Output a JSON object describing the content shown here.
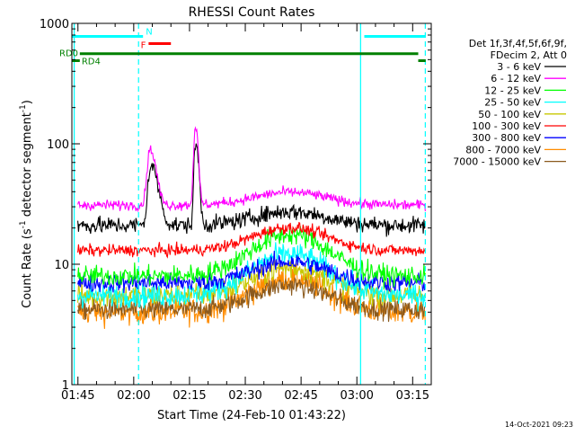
{
  "chart_data": {
    "type": "line",
    "title": "RHESSI Count Rates",
    "xlabel": "Start Time (24-Feb-10 01:43:22)",
    "ylabel": "Count Rate (s⁻¹ detector segment⁻¹)",
    "ylabel_main": "Count Rate (s",
    "ylabel_mid": " detector segment",
    "ylabel_end": ")",
    "ylabel_sup": "-1",
    "yscale": "log",
    "xlim_minutes": [
      103.37,
      200.0
    ],
    "ylim": [
      1,
      1000
    ],
    "x_ticks": [
      {
        "label": "01:45",
        "minute": 105
      },
      {
        "label": "02:00",
        "minute": 120
      },
      {
        "label": "02:15",
        "minute": 135
      },
      {
        "label": "02:30",
        "minute": 150
      },
      {
        "label": "02:45",
        "minute": 165
      },
      {
        "label": "03:00",
        "minute": 180
      },
      {
        "label": "03:15",
        "minute": 195
      }
    ],
    "y_ticks": [
      {
        "label": "1",
        "value": 1
      },
      {
        "label": "10",
        "value": 10
      },
      {
        "label": "100",
        "value": 100
      },
      {
        "label": "1000",
        "value": 1000
      }
    ],
    "legend_header": [
      "Det 1f,3f,4f,5f,6f,9f,",
      "FDecim 2, Att 0"
    ],
    "legend_placement": "right",
    "series": [
      {
        "name": "3 - 6 keV",
        "color": "#000000",
        "base": 21,
        "bump": 1.3,
        "noise": 0.1,
        "peaks": [
          {
            "minute": 124.6,
            "value": 65,
            "rise": 1.0,
            "decay": 2.5
          },
          {
            "minute": 136.7,
            "value": 100,
            "rise": 0.6,
            "decay": 1.0
          }
        ]
      },
      {
        "name": "6 - 12 keV",
        "color": "#ff00ff",
        "base": 31,
        "bump": 1.28,
        "noise": 0.06,
        "peaks": [
          {
            "minute": 124.4,
            "value": 90,
            "rise": 1.0,
            "decay": 2.0
          },
          {
            "minute": 136.6,
            "value": 140,
            "rise": 0.6,
            "decay": 0.9
          }
        ]
      },
      {
        "name": "12 - 25 keV",
        "color": "#00ff00",
        "base": 8.0,
        "bump": 2.2,
        "noise": 0.12,
        "peaks": []
      },
      {
        "name": "25 - 50 keV",
        "color": "#00ffff",
        "base": 5.5,
        "bump": 2.2,
        "noise": 0.14,
        "peaks": []
      },
      {
        "name": "50 - 100 keV",
        "color": "#c8c800",
        "base": 5.5,
        "bump": 1.7,
        "noise": 0.14,
        "peaks": []
      },
      {
        "name": "100 - 300 keV",
        "color": "#ff0000",
        "base": 13,
        "bump": 1.55,
        "noise": 0.07,
        "peaks": []
      },
      {
        "name": "300 - 800 keV",
        "color": "#0000ff",
        "base": 7.0,
        "bump": 1.5,
        "noise": 0.11,
        "peaks": []
      },
      {
        "name": "800 - 7000 keV",
        "color": "#ff8c00",
        "base": 4.0,
        "bump": 1.9,
        "noise": 0.15,
        "peaks": []
      },
      {
        "name": "7000 - 15000 keV",
        "color": "#8b5a1e",
        "base": 4.2,
        "bump": 1.6,
        "noise": 0.12,
        "peaks": []
      }
    ],
    "flags": [
      {
        "label": "N",
        "color": "#00ffff",
        "segments": [
          [
            103.37,
            122.5
          ],
          [
            182.0,
            198.5
          ]
        ],
        "value": 780
      },
      {
        "label": "F",
        "color": "#ff0000",
        "segments": [
          [
            124.0,
            130.0
          ]
        ],
        "value": 680
      },
      {
        "label": "RD0",
        "color": "#008000",
        "segments": [
          [
            105.5,
            196.5
          ]
        ],
        "value": 560
      },
      {
        "label": "RD4",
        "color": "#008000",
        "segments": [
          [
            103.37,
            105.5
          ],
          [
            196.5,
            198.5
          ]
        ],
        "value": 490
      }
    ],
    "vlines": [
      {
        "minute": 104.0,
        "color": "#00ffff",
        "style": "solid"
      },
      {
        "minute": 121.3,
        "color": "#00ffff",
        "style": "dashed"
      },
      {
        "minute": 181.0,
        "color": "#00ffff",
        "style": "solid"
      },
      {
        "minute": 198.4,
        "color": "#00ffff",
        "style": "dashed"
      }
    ],
    "timestamp": "14-Oct-2021 09:23"
  }
}
